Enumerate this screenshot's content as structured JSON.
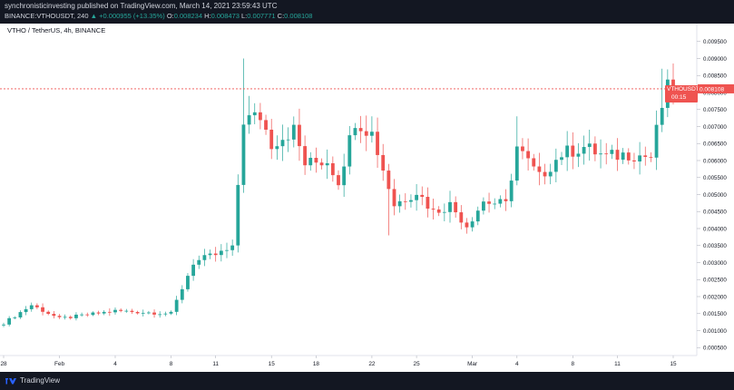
{
  "header": {
    "published_line": "synchronisticinvesting published on TradingView.com, March 14, 2021 23:59:43 UTC",
    "symbol_line": "BINANCE:VTHOUSDT, 240",
    "change_arrow": "▲",
    "change": "+0.000955 (+13.35%)",
    "open_label": "O:",
    "open_value": "0.008234",
    "high_label": "H:",
    "high_value": "0.008473",
    "low_label": "L:",
    "low_value": "0.007771",
    "close_label": "C:",
    "close_value": "0.008108"
  },
  "legend": {
    "text": "VTHO / TetherUS, 4h, BINANCE"
  },
  "price_tag": {
    "symbol": "VTHOUSDT",
    "price": "0.008108",
    "countdown": "00:15"
  },
  "footer": {
    "brand": "TradingView",
    "logo_icon": "tradingview-logo-icon"
  },
  "colors": {
    "up": "#26a69a",
    "down": "#ef5350",
    "price_line": "#ef5350",
    "bars_dark": "#131722"
  },
  "chart_data": {
    "type": "candlestick",
    "y_ticks": [
      "0.009500",
      "0.009000",
      "0.008500",
      "0.008000",
      "0.007500",
      "0.007000",
      "0.006500",
      "0.006000",
      "0.005500",
      "0.005000",
      "0.004500",
      "0.004000",
      "0.003500",
      "0.003000",
      "0.002500",
      "0.002000",
      "0.001500",
      "0.001000",
      "0.000500"
    ],
    "ylim": [
      0.00032,
      0.00992
    ],
    "x_ticks": [
      "28",
      "Feb",
      "4",
      "8",
      "11",
      "15",
      "18",
      "22",
      "25",
      "Mar",
      "4",
      "8",
      "11",
      "15"
    ],
    "x_tick_index": [
      0,
      10,
      20,
      30,
      38,
      48,
      56,
      66,
      74,
      84,
      92,
      102,
      110,
      120
    ],
    "current_price": 0.008108,
    "anchors": [
      [
        0,
        0.00122
      ],
      [
        5,
        0.00175
      ],
      [
        10,
        0.00135
      ],
      [
        20,
        0.00158
      ],
      [
        30,
        0.0015
      ],
      [
        34,
        0.003
      ],
      [
        41,
        0.0034
      ],
      [
        43,
        0.0072
      ],
      [
        46,
        0.0073
      ],
      [
        48,
        0.0065
      ],
      [
        52,
        0.0069
      ],
      [
        54,
        0.0059
      ],
      [
        58,
        0.006
      ],
      [
        60,
        0.0054
      ],
      [
        63,
        0.0072
      ],
      [
        66,
        0.0068
      ],
      [
        70,
        0.0047
      ],
      [
        74,
        0.0051
      ],
      [
        77,
        0.0045
      ],
      [
        80,
        0.0047
      ],
      [
        83,
        0.0041
      ],
      [
        86,
        0.0048
      ],
      [
        90,
        0.0047
      ],
      [
        92,
        0.0064
      ],
      [
        96,
        0.0055
      ],
      [
        100,
        0.0062
      ],
      [
        104,
        0.0064
      ],
      [
        108,
        0.0061
      ],
      [
        112,
        0.0062
      ],
      [
        116,
        0.0061
      ],
      [
        118,
        0.0076
      ],
      [
        119,
        0.0081
      ],
      [
        120,
        0.00811
      ]
    ],
    "spikes": [
      [
        43,
        0.009
      ],
      [
        44,
        0.0079
      ],
      [
        66,
        0.0073
      ],
      [
        69,
        0.0038
      ],
      [
        83,
        0.00385
      ],
      [
        92,
        0.0073
      ],
      [
        118,
        0.0087
      ]
    ]
  }
}
